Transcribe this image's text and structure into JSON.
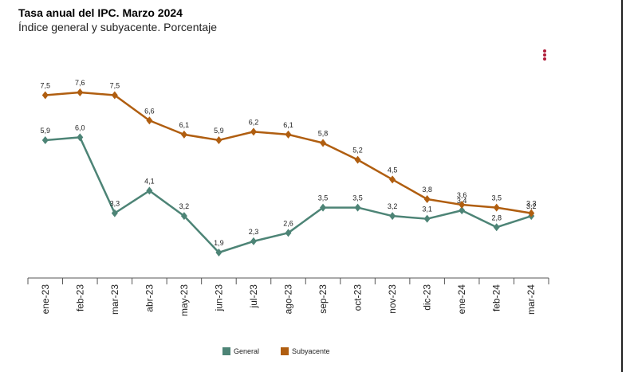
{
  "title": "Tasa anual del IPC. Marzo 2024",
  "subtitle": "Índice general y subyacente. Porcentaje",
  "menu_icon": "kebab-menu-icon",
  "chart_data": {
    "type": "line",
    "categories": [
      "ene-23",
      "feb-23",
      "mar-23",
      "abr-23",
      "may-23",
      "jun-23",
      "jul-23",
      "ago-23",
      "sep-23",
      "oct-23",
      "nov-23",
      "dic-23",
      "ene-24",
      "feb-24",
      "mar-24"
    ],
    "series": [
      {
        "name": "General",
        "color": "#4d8476",
        "values": [
          5.9,
          6.0,
          3.3,
          4.1,
          3.2,
          1.9,
          2.3,
          2.6,
          3.5,
          3.5,
          3.2,
          3.1,
          3.4,
          2.8,
          3.2
        ],
        "labels": [
          "5,9",
          "6,0",
          "3,3",
          "4,1",
          "3,2",
          "1,9",
          "2,3",
          "2,6",
          "3,5",
          "3,5",
          "3,2",
          "3,1",
          "3,4",
          "2,8",
          "3,2"
        ]
      },
      {
        "name": "Subyacente",
        "color": "#b05e10",
        "values": [
          7.5,
          7.6,
          7.5,
          6.6,
          6.1,
          5.9,
          6.2,
          6.1,
          5.8,
          5.2,
          4.5,
          3.8,
          3.6,
          3.5,
          3.3
        ],
        "labels": [
          "7,5",
          "7,6",
          "7,5",
          "6,6",
          "6,1",
          "5,9",
          "6,2",
          "6,1",
          "5,8",
          "5,2",
          "4,5",
          "3,8",
          "3,6",
          "3,5",
          "3,3"
        ]
      }
    ],
    "legend_position": "bottom-center",
    "grid": false
  }
}
